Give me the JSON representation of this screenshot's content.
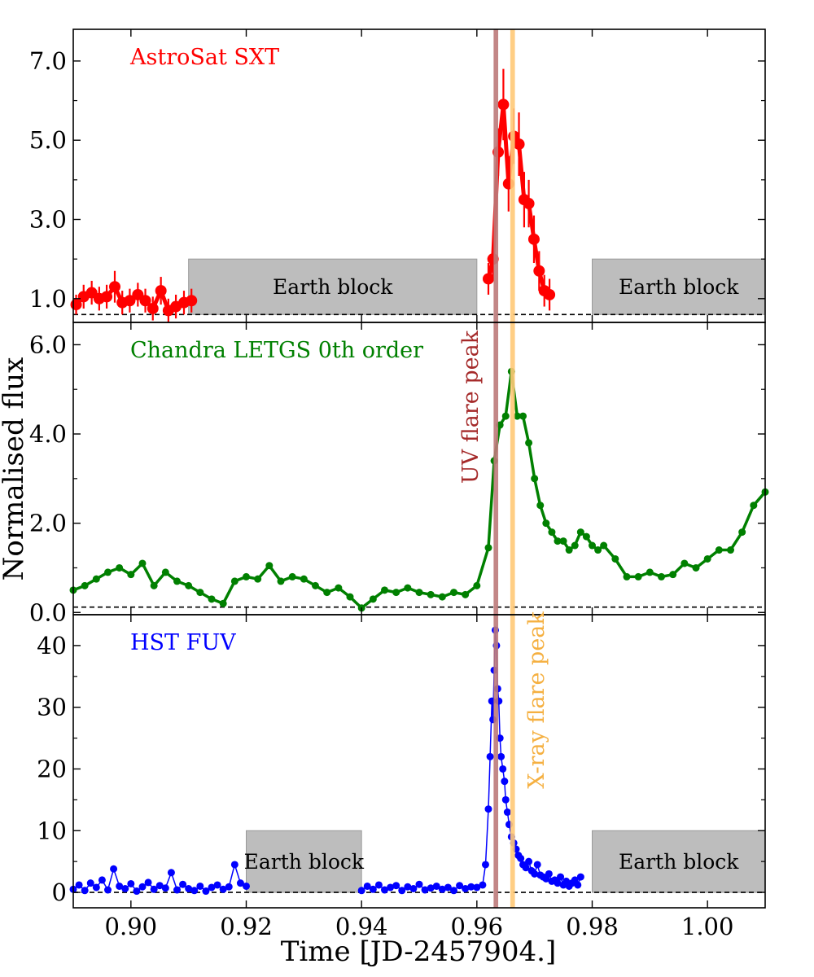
{
  "figure": {
    "ylabel": "Normalised flux",
    "xlabel": "Time [JD-2457904.]",
    "xlim": [
      0.89,
      1.01
    ],
    "xticks": [
      0.9,
      0.92,
      0.94,
      0.96,
      0.98,
      1.0
    ],
    "xtick_labels": [
      "0.90",
      "0.92",
      "0.94",
      "0.96",
      "0.98",
      "1.00"
    ],
    "bands": [
      {
        "name": "UV flare peak",
        "x_center": 0.9633,
        "width": 0.0008,
        "color": "#bc7a7a",
        "label_color": "#a52a2a"
      },
      {
        "name": "X-ray flare peak",
        "x_center": 0.9662,
        "width": 0.0008,
        "color": "#ffc977",
        "label_color": "#f5b041"
      }
    ],
    "earth_block_label": "Earth block",
    "colors": {
      "axis": "#000000",
      "band_fill": "#bdbdbd",
      "band_edge": "#9a9a9a"
    }
  },
  "chart_data": [
    {
      "type": "scatter",
      "title": "AstroSat SXT",
      "title_color": "#ff0000",
      "color": "#ff0000",
      "ylim": [
        0.4,
        7.8
      ],
      "yticks": [
        1.0,
        3.0,
        5.0,
        7.0
      ],
      "ytick_labels": [
        "1.0",
        "3.0",
        "5.0",
        "7.0"
      ],
      "baseline": 0.6,
      "marker_radius": 7,
      "line_width": 5,
      "earth_blocks": [
        [
          0.91,
          0.96
        ],
        [
          0.98,
          1.01
        ]
      ],
      "earth_block_top": 2.0,
      "segments": [
        {
          "x": [
            0.8905,
            0.8918,
            0.8932,
            0.8945,
            0.8958,
            0.8972,
            0.8985,
            0.8998,
            0.9012,
            0.9025,
            0.9038,
            0.9052,
            0.9065,
            0.9078,
            0.9092,
            0.9105
          ],
          "y": [
            0.85,
            1.05,
            1.15,
            1.0,
            1.05,
            1.3,
            0.9,
            0.95,
            1.1,
            0.95,
            0.75,
            1.2,
            0.7,
            0.8,
            0.9,
            0.95
          ],
          "err": [
            0.25,
            0.3,
            0.3,
            0.3,
            0.3,
            0.4,
            0.3,
            0.3,
            0.3,
            0.3,
            0.3,
            0.35,
            0.3,
            0.3,
            0.3,
            0.3
          ]
        },
        {
          "x": [
            0.962,
            0.9628,
            0.9637,
            0.9646,
            0.9655,
            0.9664,
            0.9673,
            0.9682,
            0.969,
            0.9699,
            0.9708,
            0.9717,
            0.9726
          ],
          "y": [
            1.5,
            2.0,
            4.7,
            5.9,
            3.9,
            5.1,
            4.9,
            3.5,
            3.4,
            2.5,
            1.7,
            1.2,
            1.1
          ],
          "err": [
            0.4,
            0.5,
            0.6,
            0.9,
            0.7,
            0.7,
            0.8,
            0.7,
            0.6,
            0.6,
            0.5,
            0.4,
            0.4
          ]
        }
      ]
    },
    {
      "type": "line",
      "title": "Chandra LETGS 0th order",
      "title_color": "#008000",
      "color": "#008000",
      "ylim": [
        -0.05,
        6.5
      ],
      "yticks": [
        0.0,
        2.0,
        4.0,
        6.0
      ],
      "ytick_labels": [
        "0.0",
        "2.0",
        "4.0",
        "6.0"
      ],
      "baseline": 0.12,
      "marker_radius": 4.5,
      "line_width": 3.5,
      "earth_blocks": [],
      "segments": [
        {
          "x": [
            0.89,
            0.892,
            0.894,
            0.896,
            0.898,
            0.9,
            0.902,
            0.904,
            0.906,
            0.908,
            0.91,
            0.912,
            0.914,
            0.916,
            0.918,
            0.92,
            0.922,
            0.924,
            0.926,
            0.928,
            0.93,
            0.932,
            0.934,
            0.936,
            0.938,
            0.94,
            0.942,
            0.944,
            0.946,
            0.948,
            0.95,
            0.952,
            0.954,
            0.956,
            0.958,
            0.96,
            0.962,
            0.963,
            0.964,
            0.965,
            0.966,
            0.967,
            0.968,
            0.969,
            0.97,
            0.971,
            0.972,
            0.973,
            0.974,
            0.975,
            0.976,
            0.977,
            0.978,
            0.979,
            0.98,
            0.981,
            0.982,
            0.984,
            0.986,
            0.988,
            0.99,
            0.992,
            0.994,
            0.996,
            0.998,
            1.0,
            1.002,
            1.004,
            1.006,
            1.008,
            1.01
          ],
          "y": [
            0.5,
            0.6,
            0.75,
            0.9,
            1.0,
            0.85,
            1.1,
            0.6,
            0.9,
            0.7,
            0.6,
            0.45,
            0.3,
            0.2,
            0.7,
            0.8,
            0.75,
            1.05,
            0.7,
            0.8,
            0.75,
            0.6,
            0.45,
            0.55,
            0.35,
            0.1,
            0.3,
            0.5,
            0.45,
            0.55,
            0.45,
            0.4,
            0.35,
            0.45,
            0.4,
            0.6,
            1.45,
            3.4,
            4.2,
            4.4,
            5.4,
            4.4,
            4.4,
            3.8,
            3.0,
            2.4,
            2.0,
            1.8,
            1.6,
            1.6,
            1.4,
            1.5,
            1.8,
            1.7,
            1.5,
            1.4,
            1.5,
            1.2,
            0.8,
            0.8,
            0.9,
            0.8,
            0.85,
            1.1,
            1.0,
            1.2,
            1.4,
            1.4,
            1.8,
            2.4,
            2.7
          ],
          "err": []
        }
      ]
    },
    {
      "type": "scatter",
      "title": "HST FUV",
      "title_color": "#0000ff",
      "color": "#0000ff",
      "ylim": [
        -2.5,
        45
      ],
      "yticks": [
        0,
        10,
        20,
        30,
        40
      ],
      "ytick_labels": [
        "0",
        "10",
        "20",
        "30",
        "40"
      ],
      "baseline": 0,
      "marker_radius": 4.5,
      "line_width": 1.5,
      "earth_blocks": [
        [
          0.92,
          0.94
        ],
        [
          0.98,
          1.01
        ]
      ],
      "earth_block_top": 10,
      "segments": [
        {
          "x": [
            0.89,
            0.891,
            0.892,
            0.893,
            0.894,
            0.895,
            0.896,
            0.897,
            0.898,
            0.899,
            0.9,
            0.901,
            0.902,
            0.903,
            0.904,
            0.905,
            0.906,
            0.907,
            0.908,
            0.909,
            0.91,
            0.911,
            0.912,
            0.913,
            0.914,
            0.915,
            0.916,
            0.917,
            0.918,
            0.919,
            0.92
          ],
          "y": [
            0.5,
            1.2,
            0.3,
            1.5,
            0.8,
            2.0,
            0.4,
            3.8,
            1.0,
            0.6,
            1.4,
            0.2,
            0.9,
            1.6,
            0.5,
            1.1,
            0.7,
            3.2,
            0.4,
            1.3,
            0.6,
            0.3,
            1.0,
            0.2,
            0.8,
            1.2,
            0.5,
            0.9,
            4.5,
            1.5,
            1.0
          ]
        },
        {
          "x": [
            0.94,
            0.941,
            0.942,
            0.943,
            0.944,
            0.945,
            0.946,
            0.947,
            0.948,
            0.949,
            0.95,
            0.951,
            0.952,
            0.953,
            0.954,
            0.955,
            0.956,
            0.957,
            0.958,
            0.959,
            0.96,
            0.961,
            0.9615,
            0.962,
            0.9623,
            0.9626,
            0.9628,
            0.963,
            0.9632,
            0.9634,
            0.9636,
            0.9638,
            0.964,
            0.9642,
            0.9645,
            0.9648,
            0.965,
            0.9653,
            0.9656,
            0.966,
            0.9664,
            0.9668,
            0.9672,
            0.9676,
            0.968,
            0.9685,
            0.969,
            0.9695,
            0.97,
            0.9705,
            0.971,
            0.9715,
            0.972,
            0.9725,
            0.973,
            0.9735,
            0.974,
            0.9745,
            0.975,
            0.9755,
            0.976,
            0.9765,
            0.977,
            0.9775,
            0.978
          ],
          "y": [
            0.3,
            1.0,
            0.5,
            1.2,
            0.4,
            0.8,
            1.1,
            0.3,
            0.9,
            0.6,
            1.3,
            0.4,
            0.7,
            1.0,
            0.5,
            0.8,
            0.3,
            1.1,
            0.6,
            0.9,
            0.8,
            1.2,
            4.5,
            13.5,
            22.0,
            31.0,
            28.0,
            36.0,
            42.5,
            40.0,
            33.0,
            31.0,
            25.0,
            22.0,
            20.0,
            18.0,
            15.0,
            13.0,
            11.0,
            9.0,
            8.0,
            7.0,
            6.0,
            5.5,
            4.5,
            4.0,
            5.0,
            3.5,
            3.0,
            4.5,
            2.8,
            2.5,
            2.2,
            3.0,
            1.8,
            2.0,
            1.5,
            2.5,
            1.2,
            1.8,
            1.0,
            1.5,
            2.0,
            1.2,
            2.5
          ]
        }
      ]
    }
  ]
}
